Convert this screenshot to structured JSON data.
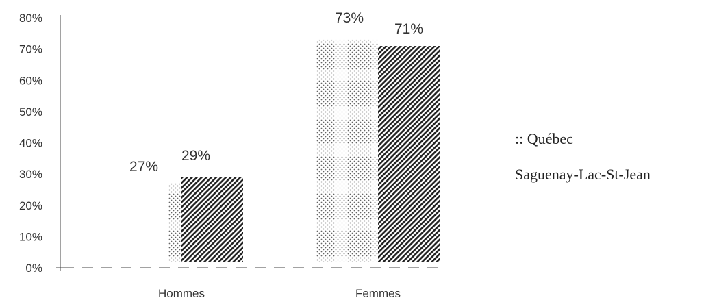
{
  "chart_data": {
    "type": "bar",
    "categories": [
      "Hommes",
      "Femmes"
    ],
    "series": [
      {
        "name": "Québec",
        "values": [
          27,
          73
        ],
        "pattern": "dots",
        "color": "#666666"
      },
      {
        "name": "Saguenay-Lac-St-Jean",
        "values": [
          29,
          71
        ],
        "pattern": "hatch",
        "color": "#222222"
      }
    ],
    "data_labels": [
      [
        "27%",
        "73%"
      ],
      [
        "29%",
        "71%"
      ]
    ],
    "ylim": [
      0,
      80
    ],
    "yticks": [
      "0%",
      "10%",
      "20%",
      "30%",
      "40%",
      "50%",
      "60%",
      "70%",
      "80%"
    ],
    "legend": {
      "placement": "right",
      "entries": [
        {
          "label": "Québec",
          "marker": "::"
        },
        {
          "label": "Saguenay-Lac-St-Jean",
          "marker": ""
        }
      ]
    },
    "grid": false
  }
}
